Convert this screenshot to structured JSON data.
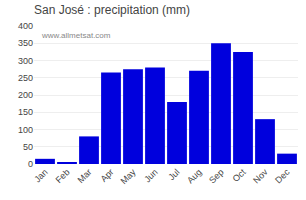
{
  "chart_data": {
    "type": "bar",
    "title": "San José : precipitation (mm)",
    "categories": [
      "Jan",
      "Feb",
      "Mar",
      "Apr",
      "May",
      "Jun",
      "Jul",
      "Aug",
      "Sep",
      "Oct",
      "Nov",
      "Dec"
    ],
    "values": [
      15,
      5,
      80,
      265,
      275,
      280,
      180,
      270,
      350,
      325,
      130,
      30
    ],
    "color": "#0000dd",
    "ylim": [
      0,
      400
    ],
    "yticks": [
      0,
      50,
      100,
      150,
      200,
      250,
      300,
      350,
      400
    ],
    "grid": true,
    "annotations": [
      "www.allmetsat.com"
    ]
  }
}
